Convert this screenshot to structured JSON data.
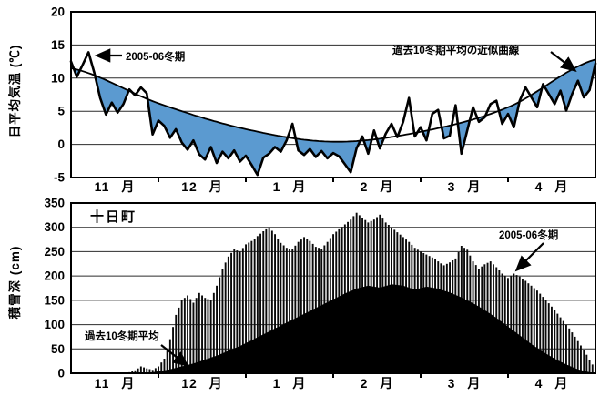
{
  "figure": {
    "background": "#ffffff",
    "accent_blue": "#5b9ad0",
    "ink": "#000000"
  },
  "chart_data": [
    {
      "type": "line",
      "ylabel": "日平均気温 (℃)",
      "ylim": [
        -5,
        20
      ],
      "yticks": [
        20,
        15,
        10,
        5,
        0,
        -5
      ],
      "xtick_labels": [
        "11 月",
        "12 月",
        "1 月",
        "2 月",
        "3 月",
        "4 月"
      ],
      "x_range_days": [
        0,
        180
      ],
      "sample_step_days": 2,
      "grid": "horizontal",
      "series": [
        {
          "name": "2005-06冬期",
          "style": "daily jagged black line",
          "values": [
            12.5,
            10.2,
            12.0,
            13.9,
            10.8,
            7.0,
            4.5,
            6.3,
            4.8,
            6.1,
            8.3,
            7.4,
            8.6,
            7.7,
            1.5,
            3.6,
            2.8,
            1.0,
            2.3,
            0.3,
            -0.8,
            0.6,
            -1.5,
            -2.3,
            -0.4,
            -2.8,
            -1.1,
            -2.1,
            -0.9,
            -2.6,
            -1.7,
            -3.1,
            -4.6,
            -2.0,
            -1.4,
            -0.4,
            -1.1,
            0.6,
            3.1,
            -0.9,
            -1.6,
            -0.7,
            -1.9,
            -1.0,
            -2.1,
            -1.3,
            -1.8,
            -3.0,
            -4.2,
            -0.6,
            1.2,
            -1.4,
            2.1,
            -0.6,
            1.6,
            3.1,
            1.1,
            3.4,
            7.0,
            1.2,
            2.6,
            0.6,
            4.6,
            5.2,
            0.9,
            1.3,
            5.9,
            -1.4,
            2.1,
            5.6,
            3.4,
            4.1,
            6.1,
            6.6,
            3.1,
            4.6,
            2.6,
            6.6,
            8.6,
            7.1,
            5.6,
            9.1,
            7.6,
            6.1,
            8.1,
            5.1,
            7.6,
            9.6,
            7.1,
            8.2,
            12.2
          ]
        },
        {
          "name": "過去10冬期平均の近似曲線",
          "style": "smooth approximation curve",
          "anchor_days": [
            0,
            30,
            60,
            90,
            120,
            150,
            180
          ],
          "anchor_values": [
            11.5,
            6.2,
            2.3,
            0.4,
            1.9,
            5.6,
            12.8
          ]
        }
      ],
      "fill": {
        "color": "#5b9ad0",
        "rule": "shaded where 2005-06 daily temperature is below the 10-winter average curve"
      },
      "annotations": [
        {
          "text": "2005-06冬期"
        },
        {
          "text": "過去10冬期平均の近似曲線"
        }
      ]
    },
    {
      "type": "bar+area",
      "title": "十日町",
      "ylabel": "積雪深 (cm)",
      "ylim": [
        0,
        350
      ],
      "yticks": [
        350,
        300,
        250,
        200,
        150,
        100,
        50,
        0
      ],
      "xtick_labels": [
        "11 月",
        "12 月",
        "1 月",
        "2 月",
        "3 月",
        "4 月"
      ],
      "x_range_days": [
        0,
        180
      ],
      "sample_step_days": 2,
      "grid": "horizontal",
      "series": [
        {
          "name": "2005-06冬期",
          "style": "daily thin black bars",
          "values": [
            0,
            0,
            0,
            0,
            0,
            0,
            0,
            0,
            0,
            0,
            2,
            6,
            14,
            10,
            7,
            14,
            30,
            70,
            120,
            150,
            160,
            145,
            165,
            155,
            150,
            180,
            215,
            240,
            255,
            250,
            265,
            272,
            282,
            292,
            300,
            286,
            268,
            258,
            255,
            270,
            280,
            272,
            260,
            256,
            270,
            286,
            296,
            306,
            316,
            330,
            320,
            310,
            316,
            326,
            310,
            300,
            290,
            280,
            270,
            258,
            250,
            244,
            238,
            230,
            222,
            228,
            236,
            262,
            254,
            230,
            215,
            224,
            230,
            218,
            205,
            196,
            205,
            199,
            190,
            180,
            170,
            157,
            144,
            130,
            115,
            100,
            84,
            66,
            48,
            28,
            8
          ]
        },
        {
          "name": "過去10冬期平均",
          "style": "solid black filled area",
          "anchor_days": [
            0,
            26,
            30,
            34,
            38,
            42,
            46,
            50,
            54,
            58,
            62,
            66,
            70,
            74,
            78,
            82,
            86,
            90,
            94,
            98,
            102,
            106,
            110,
            114,
            118,
            122,
            126,
            130,
            134,
            138,
            142,
            146,
            150,
            154,
            158,
            162,
            166,
            170,
            174,
            178,
            180
          ],
          "anchor_values": [
            0,
            0,
            4,
            8,
            14,
            20,
            28,
            36,
            46,
            56,
            68,
            80,
            92,
            104,
            116,
            128,
            140,
            152,
            164,
            174,
            180,
            176,
            183,
            180,
            172,
            178,
            174,
            166,
            156,
            144,
            130,
            114,
            96,
            78,
            60,
            44,
            30,
            18,
            8,
            2,
            0
          ]
        }
      ],
      "annotations": [
        {
          "text": "2005-06冬期"
        },
        {
          "text": "過去10冬期平均"
        }
      ]
    }
  ]
}
